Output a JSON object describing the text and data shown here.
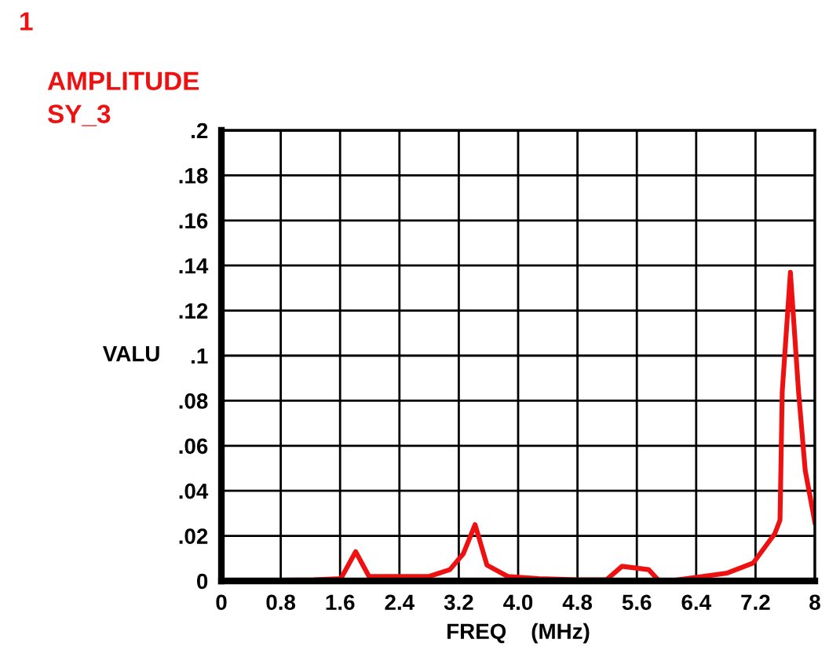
{
  "chart_data": {
    "type": "line",
    "title": "AMPLITUDE",
    "subtitle": "SY_3",
    "annotations": [
      "1"
    ],
    "xlabel": "FREQ    (MHz)",
    "ylabel": "VALU",
    "series": [
      {
        "color": "#ee1111",
        "x": [
          0,
          1.25,
          1.61,
          1.81,
          1.99,
          2.8,
          3.08,
          3.26,
          3.42,
          3.58,
          3.86,
          4.28,
          4.8,
          5.19,
          5.4,
          5.76,
          5.9,
          6.12,
          6.82,
          7.17,
          7.46,
          7.53,
          7.56,
          7.67,
          7.78,
          7.87,
          8.0
        ],
        "values": [
          0,
          0.0005,
          0.001,
          0.013,
          0.002,
          0.002,
          0.005,
          0.012,
          0.025,
          0.007,
          0.002,
          0.001,
          0.0005,
          0.0005,
          0.0065,
          0.005,
          0,
          0.0003,
          0.0035,
          0.008,
          0.021,
          0.027,
          0.084,
          0.137,
          0.084,
          0.049,
          0.026
        ]
      }
    ],
    "xlim": [
      0,
      8
    ],
    "xticks": [
      0,
      {
        "value": 0.8,
        "label": "0.8"
      },
      1.6,
      2.4,
      3.2,
      {
        "value": 4.0,
        "label": "4.0"
      },
      4.8,
      5.6,
      6.4,
      7.2,
      8
    ],
    "ylim": [
      0,
      0.2
    ],
    "yticks": [
      0,
      {
        "value": 0.02,
        "label": ".02"
      },
      {
        "value": 0.04,
        "label": ".04"
      },
      {
        "value": 0.06,
        "label": ".06"
      },
      {
        "value": 0.08,
        "label": ".08"
      },
      {
        "value": 0.1,
        "label": ".1"
      },
      {
        "value": 0.12,
        "label": ".12"
      },
      {
        "value": 0.14,
        "label": ".14"
      },
      {
        "value": 0.16,
        "label": ".16"
      },
      {
        "value": 0.18,
        "label": ".18"
      },
      {
        "value": 0.2,
        "label": ".2"
      }
    ],
    "grid": true,
    "line_style": "solid",
    "marker": "none"
  }
}
